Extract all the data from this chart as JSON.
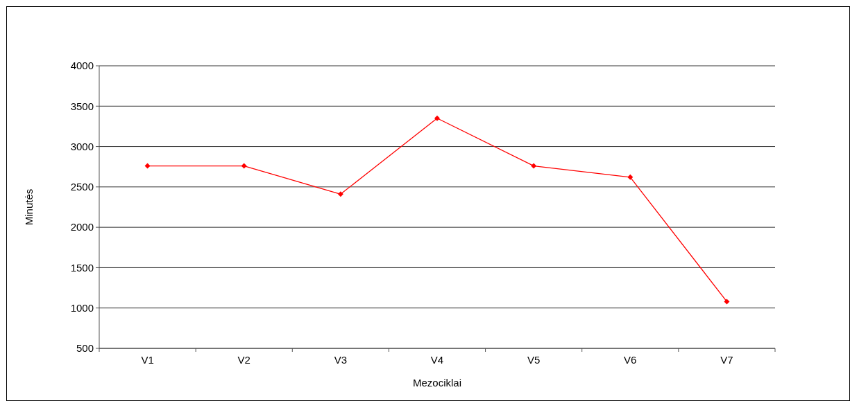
{
  "chart_data": {
    "type": "line",
    "xlabel": "Mezociklai",
    "ylabel": "Minutės",
    "categories": [
      "V1",
      "V2",
      "V3",
      "V4",
      "V5",
      "V6",
      "V7"
    ],
    "series": [
      {
        "color": "#ff0000",
        "values": [
          2760,
          2760,
          2410,
          3350,
          2760,
          2620,
          1080
        ]
      }
    ],
    "ylim": [
      500,
      4000
    ],
    "yticks": [
      500,
      1000,
      1500,
      2000,
      2500,
      3000,
      3500,
      4000
    ],
    "grid": "y",
    "marker": "diamond",
    "line_style": "solid"
  }
}
